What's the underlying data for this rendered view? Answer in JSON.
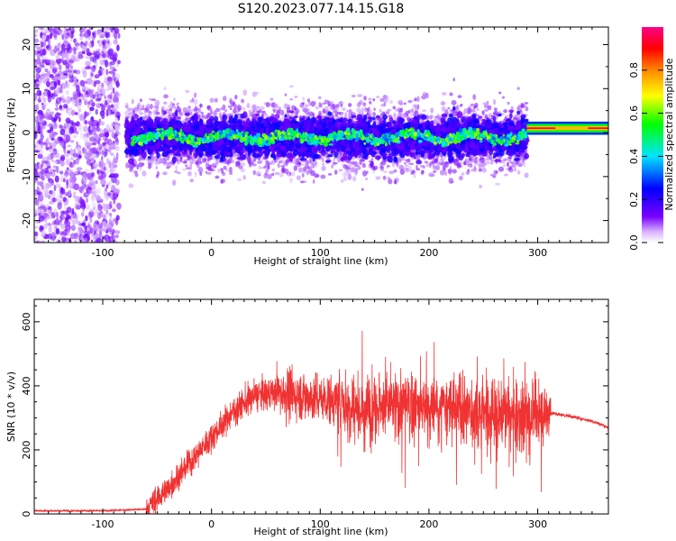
{
  "title": "S120.2023.077.14.15.G18",
  "chart_data": [
    {
      "type": "heatmap",
      "xlabel": "Height of straight line (km)",
      "ylabel": "Frequency (Hz)",
      "xlim": [
        -163,
        365
      ],
      "ylim": [
        -25,
        24
      ],
      "xticks": [
        -100,
        0,
        100,
        200,
        300
      ],
      "yticks": [
        -20,
        -10,
        0,
        10,
        20
      ],
      "colorbar": {
        "label": "Normalized spectral amplitude",
        "range": [
          0.0,
          1.0
        ],
        "ticks": [
          0.0,
          0.2,
          0.4,
          0.6,
          0.8
        ],
        "colormap": [
          "#ffffff",
          "#d9b3ff",
          "#7a00ff",
          "#0000ff",
          "#00e5ff",
          "#00ff00",
          "#ffff00",
          "#ff8800",
          "#ff0000",
          "#ff0088"
        ]
      },
      "regions": [
        {
          "x": [
            -163,
            -85
          ],
          "freq_center": 0,
          "freq_spread": 24,
          "amplitude": 0.1
        },
        {
          "x": [
            -78,
            290
          ],
          "freq_center": -1,
          "freq_spread": 6,
          "amplitude": 0.5
        },
        {
          "x": [
            290,
            365
          ],
          "freq_center": 1,
          "freq_spread": 1.5,
          "amplitude": 0.95
        }
      ]
    },
    {
      "type": "line",
      "xlabel": "Height of straight line (km)",
      "ylabel": "SNR (10 * v/v)",
      "xlim": [
        -163,
        365
      ],
      "ylim": [
        0,
        670
      ],
      "xticks": [
        -100,
        0,
        100,
        200,
        300
      ],
      "yticks": [
        0,
        200,
        400,
        600
      ],
      "color": "#f03232",
      "series": [
        {
          "x": [
            -163,
            -100,
            -60,
            -40,
            -20,
            0,
            20,
            40,
            60,
            80,
            100,
            120,
            140,
            160,
            180,
            200,
            220,
            240,
            260,
            280,
            300,
            312,
            330,
            350,
            365
          ],
          "y": [
            10,
            10,
            15,
            80,
            160,
            240,
            320,
            370,
            380,
            370,
            360,
            350,
            330,
            340,
            340,
            330,
            330,
            320,
            310,
            310,
            310,
            315,
            305,
            290,
            270
          ]
        }
      ]
    }
  ]
}
